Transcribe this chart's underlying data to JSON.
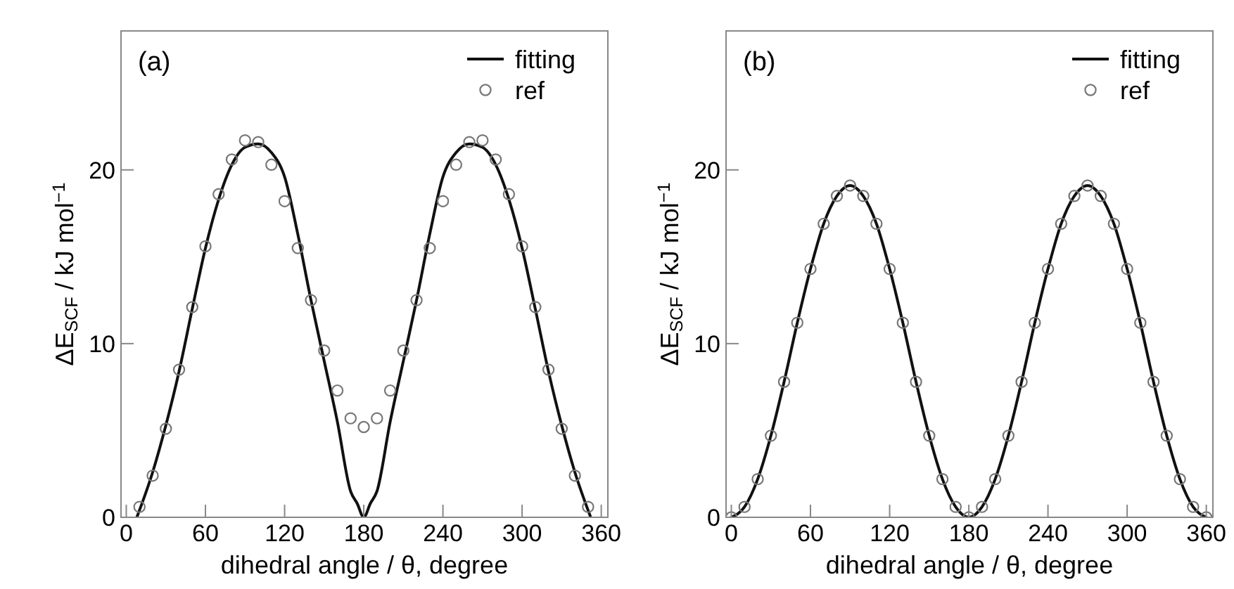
{
  "chart_data": [
    {
      "type": "line",
      "title": "(a)",
      "xlabel": "dihedral angle / θ, degree",
      "ylabel": "ΔE$_{SCF}$ / kJ mol$^{−1}$",
      "xlim": [
        -4,
        365
      ],
      "ylim": [
        0,
        28
      ],
      "xticks": [
        0,
        60,
        120,
        180,
        240,
        300,
        360
      ],
      "yticks": [
        0,
        10,
        20
      ],
      "grid": false,
      "legend": "top right",
      "series": [
        {
          "name": "fitting",
          "color": "#111111",
          "line_style": "solid",
          "x": [
            8,
            20,
            30,
            40,
            50,
            60,
            70,
            80,
            90,
            100,
            110,
            120,
            130,
            140,
            150,
            160,
            170,
            175,
            180,
            185,
            190,
            200,
            210,
            220,
            230,
            240,
            250,
            260,
            270,
            280,
            290,
            300,
            310,
            320,
            330,
            340,
            352
          ],
          "values": [
            0,
            2.6,
            5.3,
            8.4,
            12.0,
            15.5,
            18.3,
            20.3,
            21.3,
            21.5,
            21.0,
            19.6,
            16.3,
            12.5,
            9.0,
            5.5,
            1.5,
            0.8,
            0,
            0.8,
            1.5,
            5.5,
            9.0,
            12.5,
            16.3,
            19.6,
            21.0,
            21.5,
            21.3,
            20.3,
            18.3,
            15.5,
            12.0,
            8.4,
            5.3,
            2.6,
            0
          ]
        },
        {
          "name": "ref",
          "type": "scatter",
          "color": "#777777",
          "marker": "circle",
          "x": [
            10,
            20,
            30,
            40,
            50,
            60,
            70,
            80,
            90,
            100,
            110,
            120,
            130,
            140,
            150,
            160,
            170,
            180,
            190,
            200,
            210,
            220,
            230,
            240,
            250,
            260,
            270,
            280,
            290,
            300,
            310,
            320,
            330,
            340,
            350
          ],
          "values": [
            0.6,
            2.4,
            5.1,
            8.5,
            12.1,
            15.6,
            18.6,
            20.6,
            21.7,
            21.6,
            20.3,
            18.2,
            15.5,
            12.5,
            9.6,
            7.3,
            5.7,
            5.2,
            5.7,
            7.3,
            9.6,
            12.5,
            15.5,
            18.2,
            20.3,
            21.6,
            21.7,
            20.6,
            18.6,
            15.6,
            12.1,
            8.5,
            5.1,
            2.4,
            0.6
          ]
        }
      ]
    },
    {
      "type": "line",
      "title": "(b)",
      "xlabel": "dihedral angle / θ, degree",
      "ylabel": "ΔE$_{SCF}$ / kJ mol$^{−1}$",
      "xlim": [
        -4,
        365
      ],
      "ylim": [
        0,
        28
      ],
      "xticks": [
        0,
        60,
        120,
        180,
        240,
        300,
        360
      ],
      "yticks": [
        0,
        10,
        20
      ],
      "grid": false,
      "legend": "top right",
      "series": [
        {
          "name": "fitting",
          "color": "#111111",
          "line_style": "solid",
          "x": [
            0,
            10,
            20,
            30,
            40,
            50,
            60,
            70,
            80,
            90,
            100,
            110,
            120,
            130,
            140,
            150,
            160,
            170,
            180,
            190,
            200,
            210,
            220,
            230,
            240,
            250,
            260,
            270,
            280,
            290,
            300,
            310,
            320,
            330,
            340,
            350,
            360
          ],
          "values": [
            0,
            0.6,
            2.2,
            4.7,
            7.8,
            11.2,
            14.3,
            16.9,
            18.5,
            19.1,
            18.5,
            16.9,
            14.3,
            11.2,
            7.8,
            4.7,
            2.2,
            0.6,
            0,
            0.6,
            2.2,
            4.7,
            7.8,
            11.2,
            14.3,
            16.9,
            18.5,
            19.1,
            18.5,
            16.9,
            14.3,
            11.2,
            7.8,
            4.7,
            2.2,
            0.6,
            0
          ]
        },
        {
          "name": "ref",
          "type": "scatter",
          "color": "#777777",
          "marker": "circle",
          "x": [
            0,
            10,
            20,
            30,
            40,
            50,
            60,
            70,
            80,
            90,
            100,
            110,
            120,
            130,
            140,
            150,
            160,
            170,
            180,
            190,
            200,
            210,
            220,
            230,
            240,
            250,
            260,
            270,
            280,
            290,
            300,
            310,
            320,
            330,
            340,
            350,
            360
          ],
          "values": [
            0,
            0.6,
            2.2,
            4.7,
            7.8,
            11.2,
            14.3,
            16.9,
            18.5,
            19.1,
            18.5,
            16.9,
            14.3,
            11.2,
            7.8,
            4.7,
            2.2,
            0.6,
            0,
            0.6,
            2.2,
            4.7,
            7.8,
            11.2,
            14.3,
            16.9,
            18.5,
            19.1,
            18.5,
            16.9,
            14.3,
            11.2,
            7.8,
            4.7,
            2.2,
            0.6,
            0
          ]
        }
      ]
    }
  ]
}
